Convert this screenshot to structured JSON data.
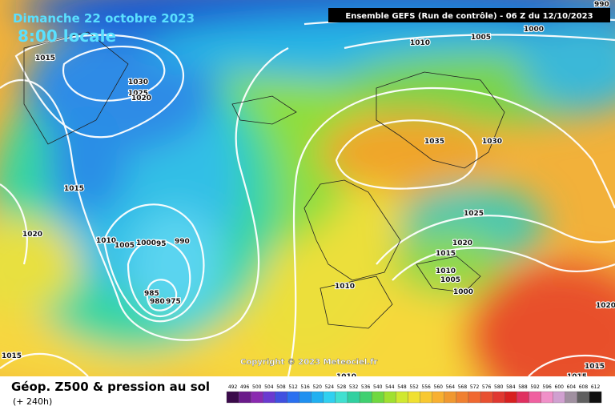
{
  "header": {
    "date": "Dimanche 22 octobre 2023",
    "time": "8:00 locale",
    "run": "Ensemble GEFS  (Run de contrôle)  -  06 Z du 12/10/2023"
  },
  "isobars": {
    "labels": [
      "990",
      "1000",
      "1005",
      "1010",
      "1015",
      "1030",
      "1025",
      "1020",
      "1035",
      "1030",
      "1015",
      "1025",
      "1020",
      "1010",
      "1005",
      "1000",
      "95",
      "990",
      "1020",
      "1015",
      "1010",
      "1005",
      "1010",
      "1000",
      "985",
      "980",
      "975",
      "1020",
      "1015",
      "1015",
      "1015",
      "1010"
    ]
  },
  "copyright": "Copyright © 2023 Meteociel.fr",
  "footer": {
    "title": "Géop. Z500 & pression au sol",
    "lead": "(+ 240h)"
  },
  "legend": {
    "values": [
      492,
      496,
      500,
      504,
      508,
      512,
      516,
      520,
      524,
      528,
      532,
      536,
      540,
      544,
      548,
      552,
      556,
      560,
      564,
      568,
      572,
      576,
      580,
      584,
      588,
      592,
      596,
      600,
      604,
      608,
      612
    ]
  }
}
